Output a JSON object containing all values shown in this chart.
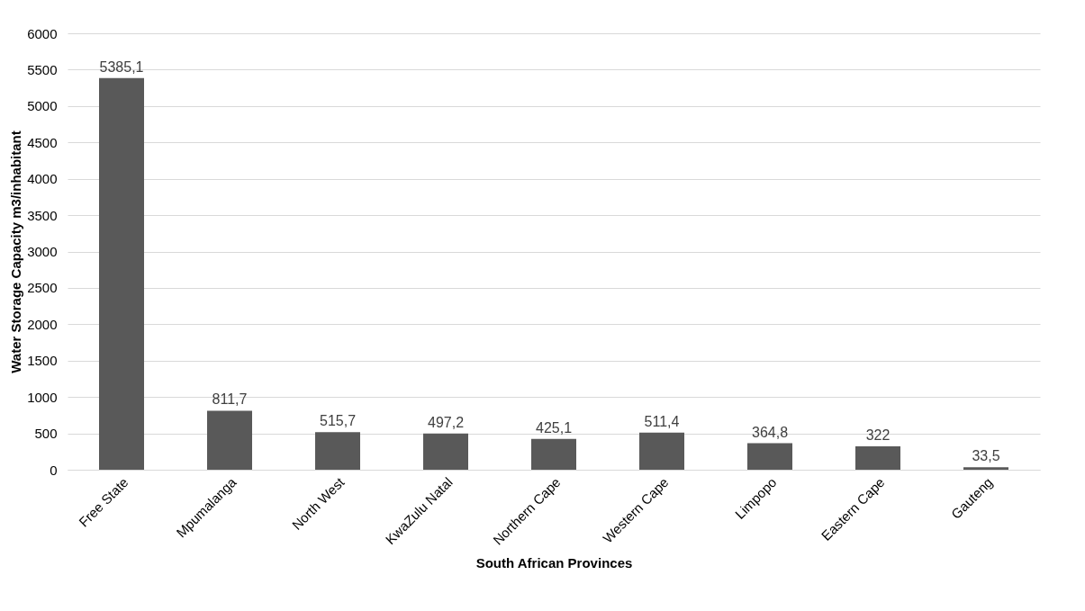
{
  "chart_data": {
    "type": "bar",
    "xlabel": "South African Provinces",
    "ylabel": "Water Storage Capacity m3/inhabitant",
    "categories": [
      "Free State",
      "Mpumalanga",
      "North West",
      "KwaZulu Natal",
      "Northern Cape",
      "Western Cape",
      "Limpopo",
      "Eastern Cape",
      "Gauteng"
    ],
    "values": [
      5385.1,
      811.7,
      515.7,
      497.2,
      425.1,
      511.4,
      364.8,
      322,
      33.5
    ],
    "value_labels": [
      "5385,1",
      "811,7",
      "515,7",
      "497,2",
      "425,1",
      "511,4",
      "364,8",
      "322",
      "33,5"
    ],
    "color": "#595959",
    "ylim": [
      0,
      6000
    ],
    "yticks": [
      0,
      500,
      1000,
      1500,
      2000,
      2500,
      3000,
      3500,
      4000,
      4500,
      5000,
      5500,
      6000
    ],
    "grid": "y"
  }
}
